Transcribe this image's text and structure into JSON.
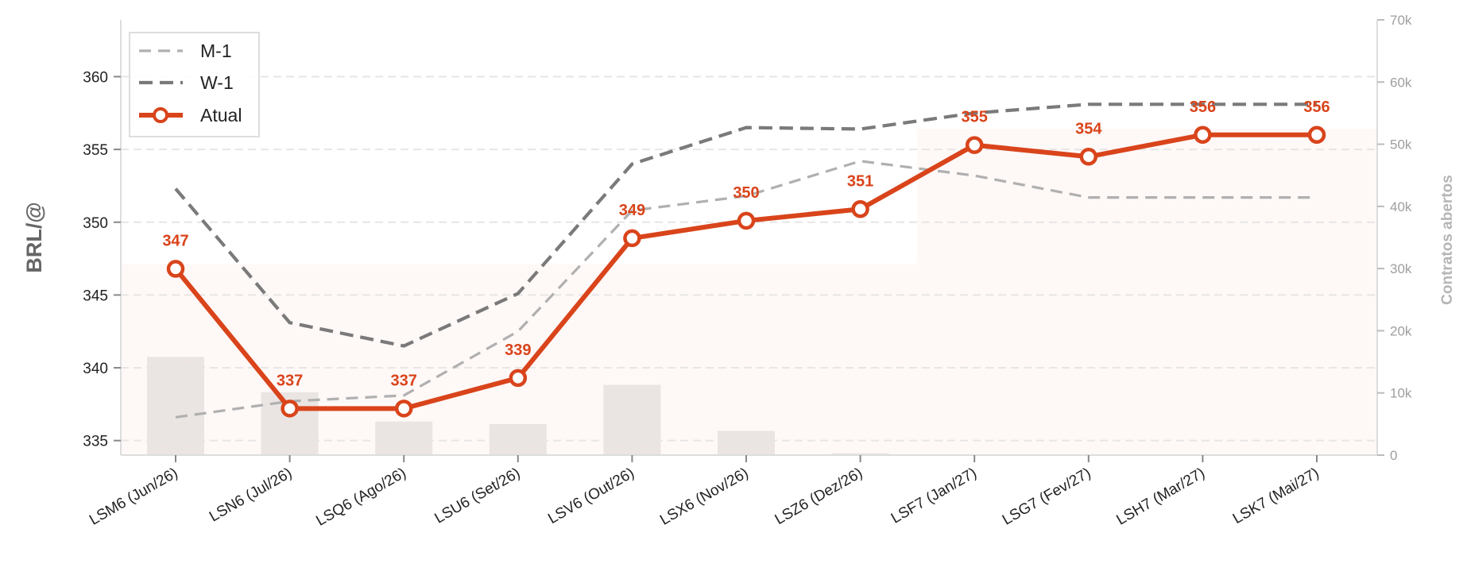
{
  "chart_data": {
    "type": "line",
    "categories": [
      "LSM6 (Jun/26)",
      "LSN6 (Jul/26)",
      "LSQ6 (Ago/26)",
      "LSU6 (Set/26)",
      "LSV6 (Out/26)",
      "LSX6 (Nov/26)",
      "LSZ6 (Dez/26)",
      "LSF7 (Jan/27)",
      "LSG7 (Fev/27)",
      "LSH7 (Mar/27)",
      "LSK7 (Mai/27)"
    ],
    "ylabel": "BRL/@",
    "y2label": "Contratos abertos",
    "ylim": [
      334,
      363.9
    ],
    "y2lim": [
      0,
      70000
    ],
    "yticks": [
      335,
      340,
      345,
      350,
      355,
      360
    ],
    "y2ticks": [
      0,
      10000,
      20000,
      30000,
      40000,
      50000,
      60000,
      70000
    ],
    "y2ticklabels": [
      "0",
      "10k",
      "20k",
      "30k",
      "40k",
      "50k",
      "60k",
      "70k"
    ],
    "grid": "horizontal dashed",
    "legend_position": "top-left",
    "series": [
      {
        "name": "M-1",
        "style": "dashed",
        "color": "#b0b0b0",
        "values": [
          336.6,
          337.7,
          338.1,
          342.5,
          350.8,
          351.8,
          354.2,
          353.2,
          351.7,
          351.7,
          351.7
        ]
      },
      {
        "name": "W-1",
        "style": "dashed",
        "color": "#7a7a7a",
        "values": [
          352.3,
          343.1,
          341.5,
          345.1,
          354.0,
          356.5,
          356.4,
          357.5,
          358.1,
          358.1,
          358.1
        ]
      },
      {
        "name": "Atual",
        "style": "solid-markers",
        "color": "#d9441b",
        "values": [
          346.8,
          337.2,
          337.2,
          339.3,
          348.9,
          350.1,
          350.9,
          355.3,
          354.5,
          356.0,
          356.0
        ]
      }
    ],
    "data_labels": [
      "347",
      "337",
      "337",
      "339",
      "349",
      "350",
      "351",
      "355",
      "354",
      "356",
      "356"
    ],
    "open_interest": [
      15800,
      10100,
      5400,
      5000,
      11300,
      3900,
      300,
      0,
      0,
      0,
      0
    ],
    "open_interest_band": [
      30700,
      30700,
      30700,
      30700,
      30700,
      30700,
      30700,
      52500,
      52500,
      52500,
      52500
    ]
  }
}
